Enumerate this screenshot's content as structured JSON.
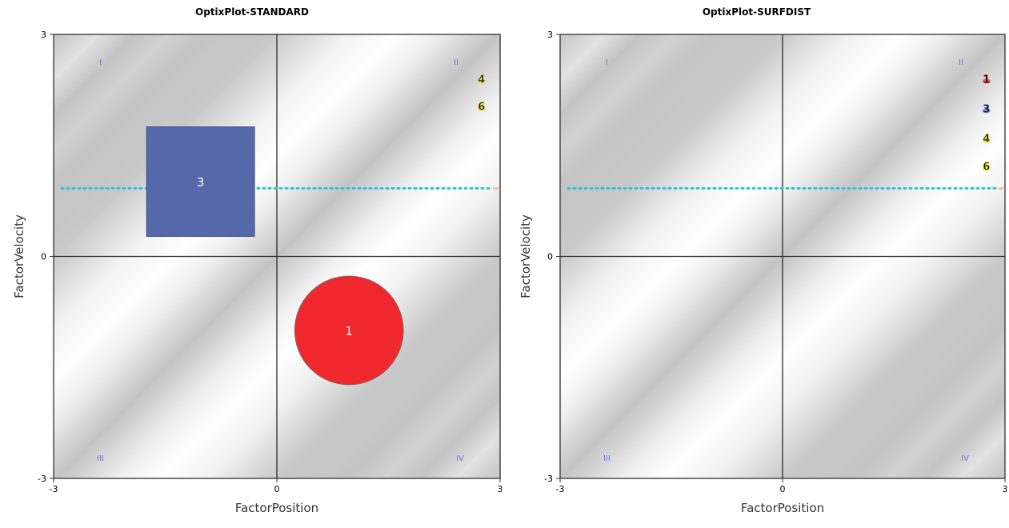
{
  "chart_data": [
    {
      "type": "scatter",
      "title": "OptixPlot-STANDARD",
      "xlabel": "FactorPosition",
      "ylabel": "FactorVelocity",
      "xlim": [
        -3,
        3
      ],
      "ylim": [
        -3,
        3
      ],
      "x_ticks": [
        "-3",
        "0",
        "3"
      ],
      "y_ticks": [
        "-3",
        "0",
        "3"
      ],
      "background": "diagonal-gradient-bands",
      "quadrants": [
        "I",
        "II",
        "III",
        "IV"
      ],
      "reference_line": {
        "y": 0.92,
        "style": "dotted",
        "color": "#2ec4d6",
        "end_label": "ref"
      },
      "shapes": [
        {
          "label": "3",
          "kind": "square",
          "x0": -1.75,
          "x1": -0.3,
          "y0": 0.27,
          "y1": 1.75,
          "color": "#5468aa"
        },
        {
          "label": "1",
          "kind": "circle",
          "cx": 0.97,
          "cy": -1.0,
          "r": 0.73,
          "color": "#f0282d"
        }
      ],
      "markers": [
        {
          "label": "4",
          "x": 2.75,
          "y": 2.4,
          "color": "#e8e030"
        },
        {
          "label": "6",
          "x": 2.75,
          "y": 2.03,
          "color": "#e8e030"
        }
      ]
    },
    {
      "type": "scatter",
      "title": "OptixPlot-SURFDIST",
      "xlabel": "FactorPosition",
      "ylabel": "FactorVelocity",
      "xlim": [
        -3,
        3
      ],
      "ylim": [
        -3,
        3
      ],
      "x_ticks": [
        "-3",
        "0",
        "3"
      ],
      "y_ticks": [
        "-3",
        "0",
        "3"
      ],
      "background": "diagonal-gradient-bands",
      "quadrants": [
        "I",
        "II",
        "III",
        "IV"
      ],
      "reference_line": {
        "y": 0.92,
        "style": "dotted",
        "color": "#2ec4d6",
        "end_label": "ref"
      },
      "shapes": [],
      "markers": [
        {
          "label": "1",
          "x": 2.75,
          "y": 2.4,
          "color": "#f04040"
        },
        {
          "label": "3",
          "x": 2.75,
          "y": 2.0,
          "color": "#6a7ad0"
        },
        {
          "label": "4",
          "x": 2.75,
          "y": 1.6,
          "color": "#e8e030"
        },
        {
          "label": "6",
          "x": 2.75,
          "y": 1.22,
          "color": "#e8e030"
        }
      ]
    }
  ]
}
